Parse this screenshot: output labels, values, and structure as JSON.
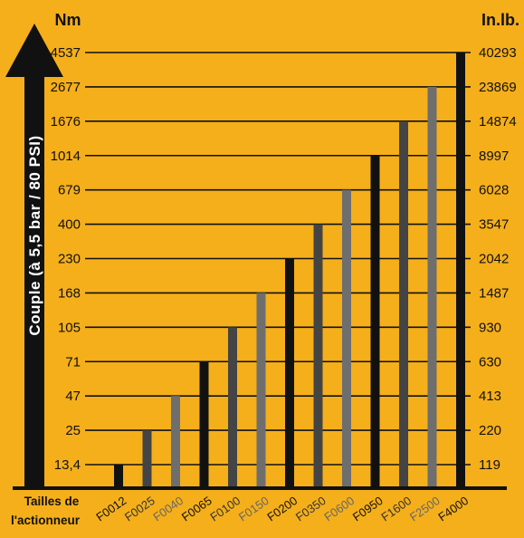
{
  "chart_data": {
    "type": "bar",
    "left_unit": "Nm",
    "right_unit": "In.lb.",
    "ylabel": "Couple (à 5,5 bar / 80 PSI)",
    "xlabel": "Tailles de l'actionneur",
    "xlabel_lines": [
      "Tailles de",
      "l'actionneur"
    ],
    "y_ticks_left": [
      "13,4",
      "25",
      "47",
      "71",
      "105",
      "168",
      "230",
      "400",
      "679",
      "1014",
      "1676",
      "2677",
      "4537"
    ],
    "y_ticks_right": [
      "119",
      "220",
      "413",
      "630",
      "930",
      "1487",
      "2042",
      "3547",
      "6028",
      "8997",
      "14874",
      "23869",
      "40293"
    ],
    "categories": [
      "F0012",
      "F0025",
      "F0040",
      "F0065",
      "F0100",
      "F0150",
      "F0200",
      "F0350",
      "F0600",
      "F0950",
      "F1600",
      "F2500",
      "F4000"
    ],
    "values_nm": [
      13.4,
      25,
      47,
      71,
      105,
      168,
      230,
      400,
      679,
      1014,
      1676,
      2677,
      4537
    ],
    "values_inlb": [
      119,
      220,
      413,
      630,
      930,
      1487,
      2042,
      3547,
      6028,
      8997,
      14874,
      23869,
      40293
    ],
    "bar_colors": [
      "#111111",
      "#444444",
      "#6e6e6e",
      "#111111",
      "#444444",
      "#6e6e6e",
      "#111111",
      "#444444",
      "#6e6e6e",
      "#111111",
      "#444444",
      "#6e6e6e",
      "#111111"
    ],
    "label_colors": [
      "#111111",
      "#333333",
      "#666666",
      "#111111",
      "#333333",
      "#666666",
      "#111111",
      "#333333",
      "#666666",
      "#111111",
      "#333333",
      "#666666",
      "#111111"
    ],
    "background": "#F5AF1B",
    "axis_color": "#111111",
    "grid": true,
    "scale": "categorical (equally spaced ticks)"
  }
}
